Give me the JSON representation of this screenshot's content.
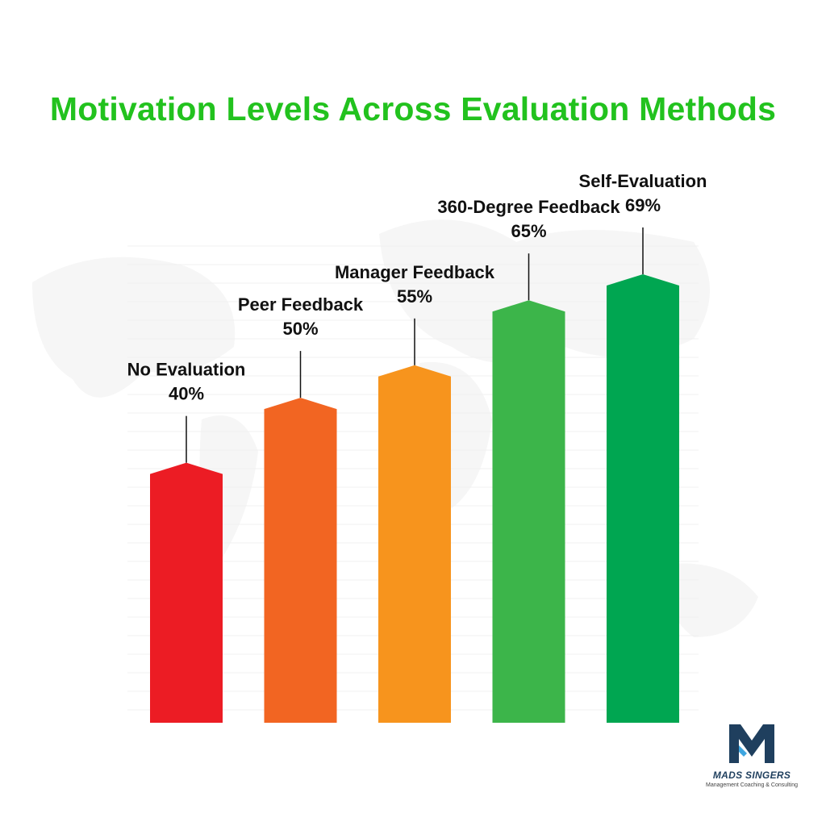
{
  "chart_data": {
    "type": "bar",
    "title": "Motivation Levels Across Evaluation Methods",
    "categories": [
      "No Evaluation",
      "Peer Feedback",
      "Manager Feedback",
      "360-Degree Feedback",
      "Self-Evaluation"
    ],
    "values": [
      40,
      50,
      55,
      65,
      69
    ],
    "value_labels": [
      "40%",
      "50%",
      "55%",
      "65%",
      "69%"
    ],
    "bar_colors": [
      "#ec1c24",
      "#f26522",
      "#f7941d",
      "#3cb54a",
      "#00a651"
    ],
    "title_color": "#22c21e",
    "unit": "%",
    "ylim": [
      0,
      69
    ],
    "grid": true,
    "xlabel": "",
    "ylabel": ""
  },
  "branding": {
    "name": "MADS SINGERS",
    "tagline": "Management Coaching & Consulting",
    "logo_icon": "m-monogram-logo",
    "logo_color": "#1f3f5e",
    "logo_accent": "#3ea6e0"
  }
}
